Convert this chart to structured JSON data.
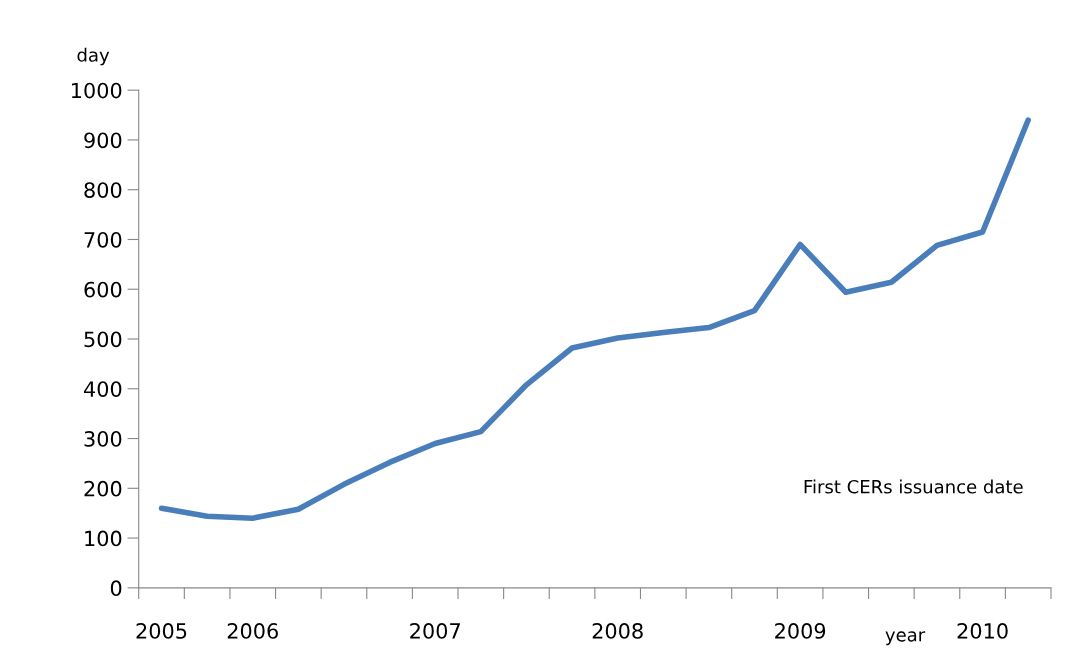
{
  "chart_data": {
    "type": "line",
    "categories": [
      "2005",
      null,
      "2006",
      null,
      null,
      null,
      "2007",
      null,
      null,
      null,
      "2008",
      null,
      null,
      null,
      "2009",
      null,
      null,
      null,
      "2010",
      null
    ],
    "series": [
      {
        "color": "#4a7ebb",
        "values": [
          160,
          144,
          140,
          158,
          208,
          252,
          290,
          314,
          408,
          482,
          502,
          513,
          523,
          557,
          690,
          594,
          614,
          688,
          715,
          940
        ]
      }
    ],
    "ylabel": "day",
    "xlabel": "year",
    "ylim": [
      0,
      1000
    ],
    "yticks": [
      0,
      100,
      200,
      300,
      400,
      500,
      600,
      700,
      800,
      900,
      1000
    ],
    "annotations": [
      "First CERs issuance date"
    ],
    "grid": false,
    "legend": false,
    "marker": "none",
    "line_style": "solid"
  }
}
